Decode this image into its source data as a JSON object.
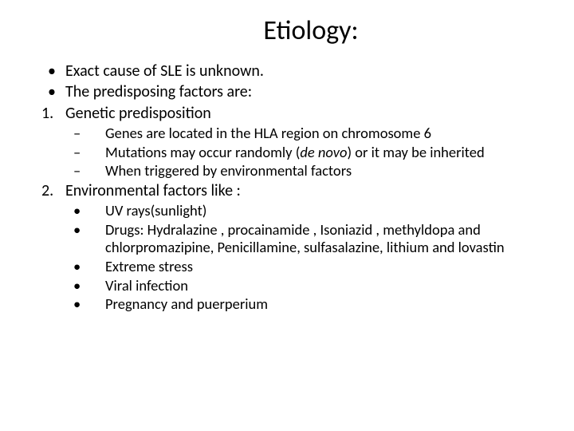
{
  "title": "Etiology:",
  "bullets": {
    "b1": "Exact cause of SLE is unknown.",
    "b2": "The predisposing factors are:",
    "n1_marker": "1.",
    "n1": "Genetic predisposition",
    "n1_s1": "Genes are located in the HLA region on chromosome 6",
    "n1_s2a": "Mutations may occur randomly (",
    "n1_s2_italic": "de novo",
    "n1_s2b": ") or it may be inherited",
    "n1_s3": "When triggered by environmental factors",
    "n2_marker": "2.",
    "n2": "Environmental factors like :",
    "n2_s1": "UV rays(sunlight)",
    "n2_s2_label": "Drugs: ",
    "n2_s2": "Hydralazine , procainamide , Isoniazid , methyldopa and chlorpromazipine, Penicillamine, sulfasalazine, lithium and lovastin",
    "n2_s3": "Extreme stress",
    "n2_s4": "Viral infection",
    "n2_s5": "Pregnancy and puerperium"
  },
  "markers": {
    "dot": "•",
    "dash": "–"
  },
  "style": {
    "background": "#ffffff",
    "text_color": "#000000",
    "title_fontsize": 34,
    "body_fontsize": 20,
    "sub_fontsize": 18.5
  }
}
